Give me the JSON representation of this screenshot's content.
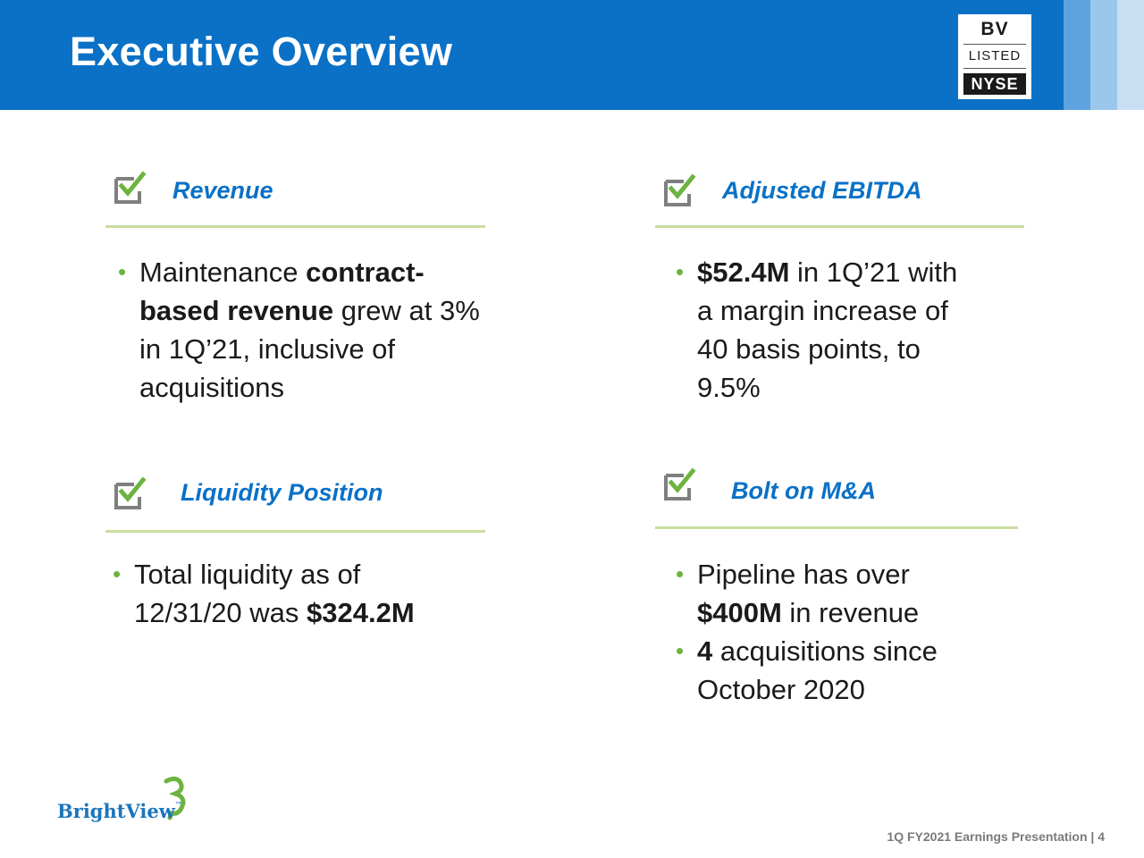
{
  "header": {
    "title": "Executive Overview",
    "badge": {
      "line1": "BV",
      "line2": "LISTED",
      "line3": "NYSE"
    }
  },
  "sections": {
    "revenue": {
      "title": "Revenue",
      "b1": {
        "t1": "Maintenance ",
        "bold": "contract-",
        "t2": "based revenue",
        "t3": " grew at 3%",
        "t4": "in 1Q’21, inclusive of",
        "t5": "acquisitions"
      }
    },
    "ebitda": {
      "title": "Adjusted EBITDA",
      "b1": {
        "bold": "$52.4M",
        "t1": " in 1Q’21 with",
        "t2": "a margin increase of",
        "t3": "40 basis points, to",
        "t4": "9.5%"
      }
    },
    "liquidity": {
      "title": "Liquidity Position",
      "b1": {
        "t1": "Total liquidity as of",
        "t2": "12/31/20 was ",
        "bold": "$324.2M"
      }
    },
    "mna": {
      "title": "Bolt on M&A",
      "b1": {
        "t1": "Pipeline has over",
        "bold": "$400M",
        "t2": " in revenue"
      },
      "b2": {
        "bold": "4",
        "t1": " acquisitions since",
        "t2": "October 2020"
      }
    }
  },
  "bullet_char": "•",
  "logo": {
    "text": "BrightView",
    "mark": "™"
  },
  "footer": {
    "text": "1Q FY2021 Earnings Presentation | 4"
  },
  "colors": {
    "header_blue": "#0a71c6",
    "accent_green": "#6db33f",
    "rule_green": "#c8de9f",
    "check_gray": "#7f7f7f"
  },
  "icons": {
    "section": "checkbox-check-icon"
  }
}
